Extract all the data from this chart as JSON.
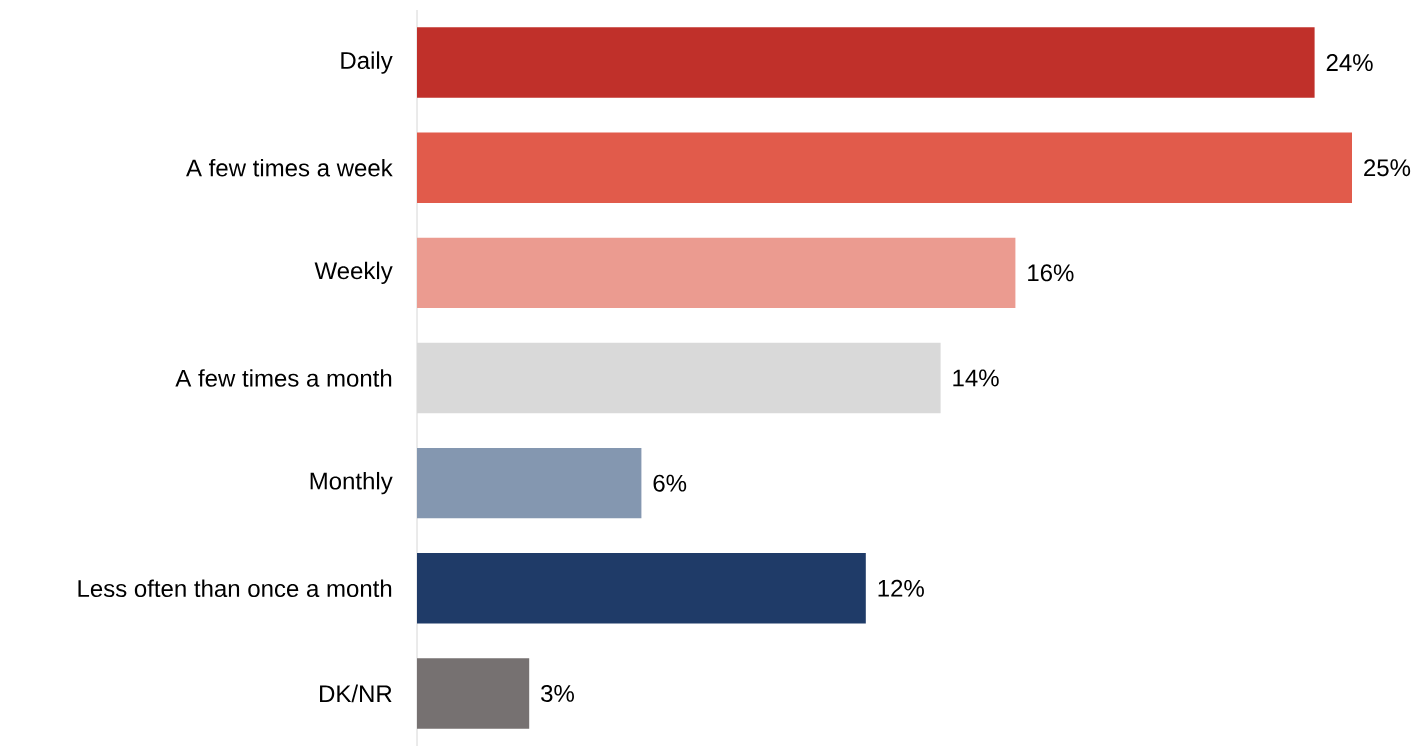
{
  "chart_data": {
    "type": "bar",
    "orientation": "horizontal",
    "categories": [
      "Daily",
      "A few times a week",
      "Weekly",
      "A few times a month",
      "Monthly",
      "Less often than once a month",
      "DK/NR"
    ],
    "values": [
      24,
      25,
      16,
      14,
      6,
      12,
      3
    ],
    "value_labels": [
      "24%",
      "25%",
      "16%",
      "14%",
      "6%",
      "12%",
      "3%"
    ],
    "colors": [
      "#c0302a",
      "#e15b4b",
      "#eb9b90",
      "#d9d9d9",
      "#8497b0",
      "#1f3b68",
      "#767171"
    ]
  }
}
